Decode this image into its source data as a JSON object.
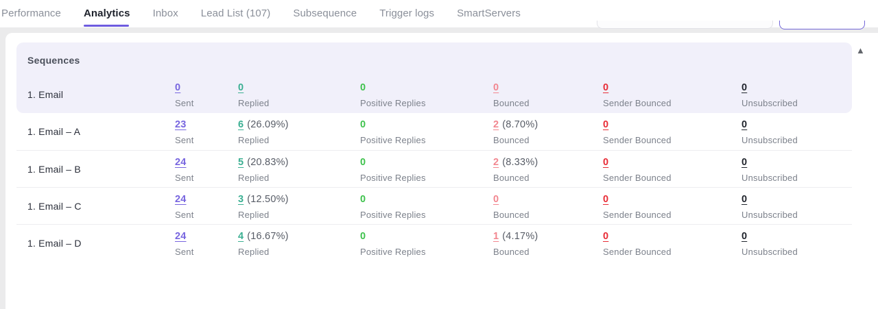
{
  "tab_bar": {
    "items": [
      {
        "label": "Performance",
        "active": false
      },
      {
        "label": "Analytics",
        "active": true
      },
      {
        "label": "Inbox",
        "active": false
      },
      {
        "label": "Lead List (107)",
        "active": false
      },
      {
        "label": "Subsequence",
        "active": false
      },
      {
        "label": "Trigger logs",
        "active": false
      },
      {
        "label": "SmartServers",
        "active": false
      }
    ]
  },
  "toolbar": {
    "search_value": "",
    "search_placeholder": ""
  },
  "sequences_panel": {
    "title": "Sequences",
    "collapse_icon": "triangle-up"
  },
  "columns": [
    "Sent",
    "Replied",
    "Positive Replies",
    "Bounced",
    "Sender Bounced",
    "Unsubscribed"
  ],
  "rows": [
    {
      "name": "1. Email",
      "is_summary": true,
      "sent": {
        "value": "0",
        "pct": ""
      },
      "replied": {
        "value": "0",
        "pct": ""
      },
      "positive_replies": {
        "value": "0",
        "pct": ""
      },
      "bounced": {
        "value": "0",
        "pct": ""
      },
      "sender_bounced": {
        "value": "0",
        "pct": ""
      },
      "unsubscribed": {
        "value": "0",
        "pct": ""
      }
    },
    {
      "name": "1. Email – A",
      "is_summary": false,
      "sent": {
        "value": "23",
        "pct": ""
      },
      "replied": {
        "value": "6",
        "pct": "(26.09%)"
      },
      "positive_replies": {
        "value": "0",
        "pct": ""
      },
      "bounced": {
        "value": "2",
        "pct": "(8.70%)"
      },
      "sender_bounced": {
        "value": "0",
        "pct": ""
      },
      "unsubscribed": {
        "value": "0",
        "pct": ""
      }
    },
    {
      "name": "1. Email – B",
      "is_summary": false,
      "sent": {
        "value": "24",
        "pct": ""
      },
      "replied": {
        "value": "5",
        "pct": "(20.83%)"
      },
      "positive_replies": {
        "value": "0",
        "pct": ""
      },
      "bounced": {
        "value": "2",
        "pct": "(8.33%)"
      },
      "sender_bounced": {
        "value": "0",
        "pct": ""
      },
      "unsubscribed": {
        "value": "0",
        "pct": ""
      }
    },
    {
      "name": "1. Email – C",
      "is_summary": false,
      "sent": {
        "value": "24",
        "pct": ""
      },
      "replied": {
        "value": "3",
        "pct": "(12.50%)"
      },
      "positive_replies": {
        "value": "0",
        "pct": ""
      },
      "bounced": {
        "value": "0",
        "pct": ""
      },
      "sender_bounced": {
        "value": "0",
        "pct": ""
      },
      "unsubscribed": {
        "value": "0",
        "pct": ""
      }
    },
    {
      "name": "1. Email – D",
      "is_summary": false,
      "sent": {
        "value": "24",
        "pct": ""
      },
      "replied": {
        "value": "4",
        "pct": "(16.67%)"
      },
      "positive_replies": {
        "value": "0",
        "pct": ""
      },
      "bounced": {
        "value": "1",
        "pct": "(4.17%)"
      },
      "sender_bounced": {
        "value": "0",
        "pct": ""
      },
      "unsubscribed": {
        "value": "0",
        "pct": ""
      }
    }
  ],
  "colors": {
    "accent": "#6E5CE0",
    "sent_link": "#7765DF",
    "replied_link": "#3BAF92",
    "positive_replies": "#3FC24D",
    "bounced_link": "#F2868F",
    "sender_bounced_link": "#E82C36",
    "unsubscribed_link": "#22262E",
    "summary_bg": "#F1F0FA"
  }
}
